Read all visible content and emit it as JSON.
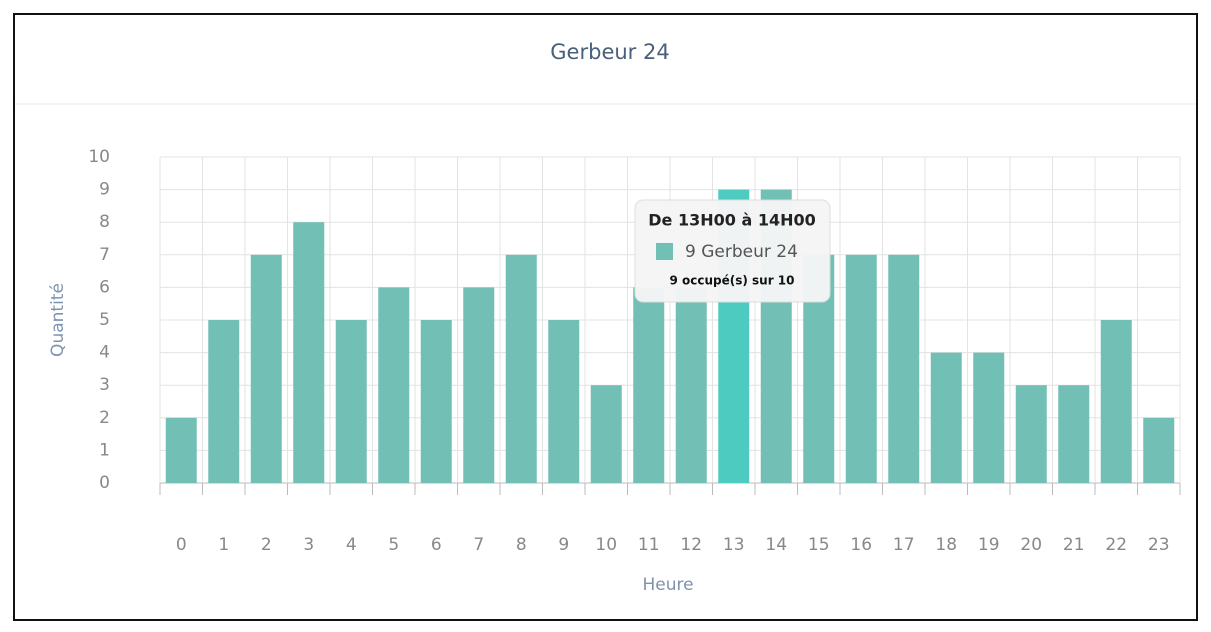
{
  "chart_data": {
    "type": "bar",
    "title": "Gerbeur 24",
    "x_label": "Heure",
    "y_label": "Quantité",
    "categories": [
      "0",
      "1",
      "2",
      "3",
      "4",
      "5",
      "6",
      "7",
      "8",
      "9",
      "10",
      "11",
      "12",
      "13",
      "14",
      "15",
      "16",
      "17",
      "18",
      "19",
      "20",
      "21",
      "22",
      "23"
    ],
    "series": [
      {
        "name": "Gerbeur 24",
        "color": "#72bfb5",
        "values": [
          2,
          5,
          7,
          8,
          5,
          6,
          5,
          6,
          7,
          5,
          3,
          6,
          6,
          9,
          9,
          7,
          7,
          7,
          4,
          4,
          3,
          3,
          5,
          2
        ]
      }
    ],
    "ylim": [
      0,
      10
    ],
    "yticks": [
      0,
      1,
      2,
      3,
      4,
      5,
      6,
      7,
      8,
      9,
      10
    ],
    "grid": true,
    "tooltip": {
      "index": 13,
      "color": "#4ecbc0",
      "title": "De 13H00 à 14H00",
      "note": "9 occupé(s) sur 10"
    }
  }
}
